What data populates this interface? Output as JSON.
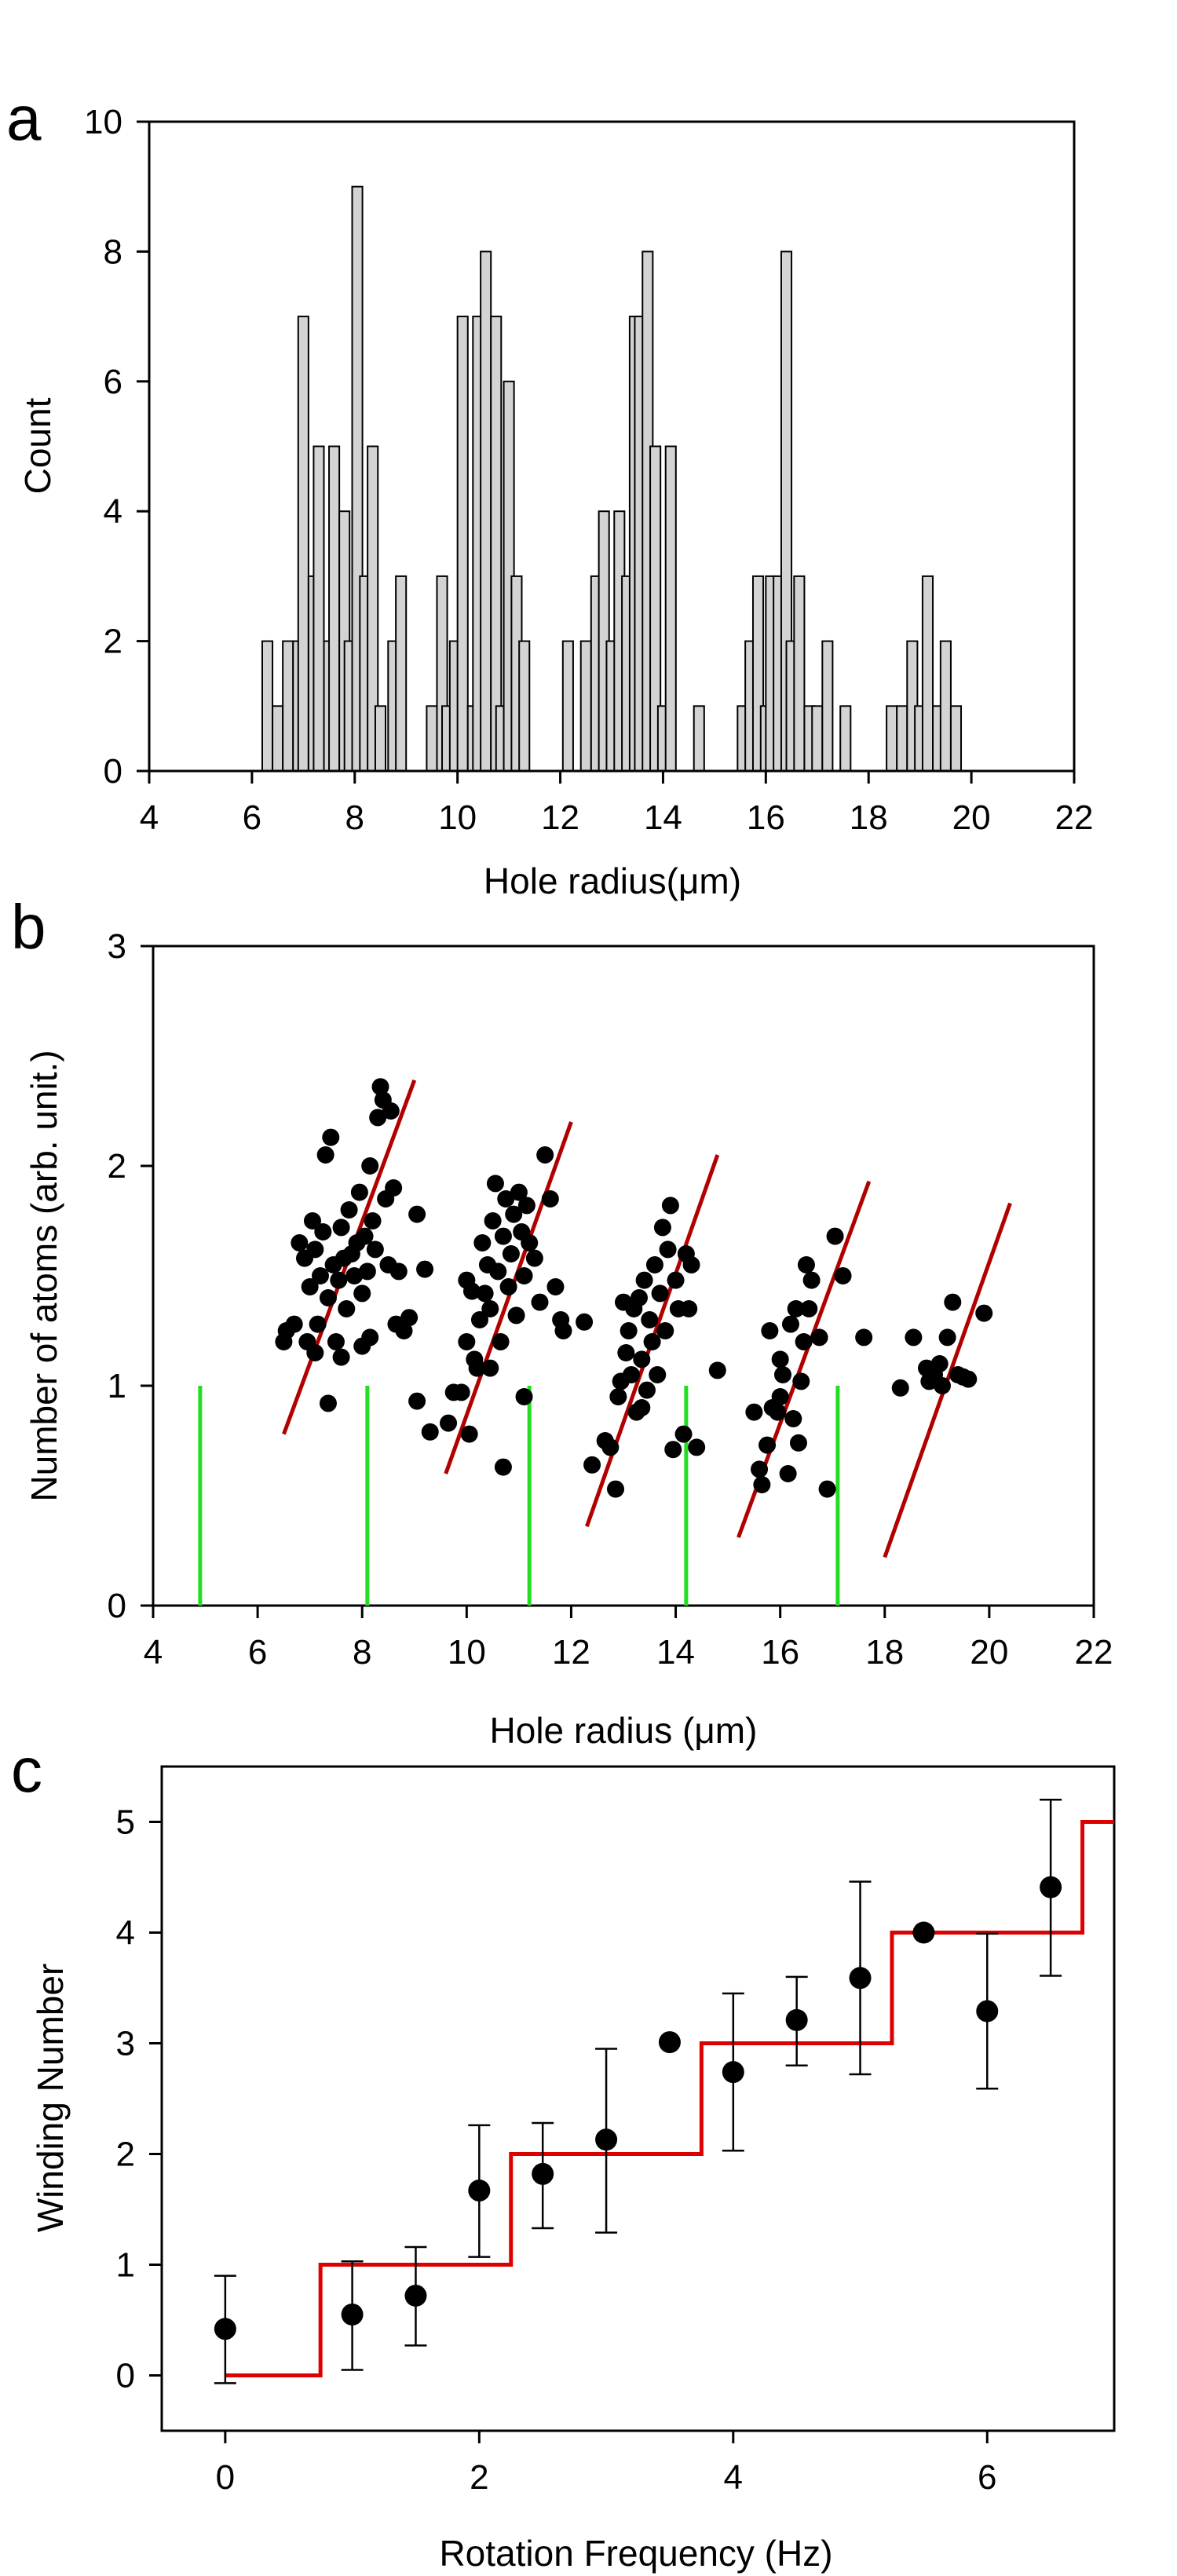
{
  "chart_data": [
    {
      "panel": "a",
      "type": "bar",
      "subtype": "histogram",
      "xlabel": "Hole radius(μm)",
      "ylabel": "Count",
      "xlim": [
        4,
        22
      ],
      "ylim": [
        0,
        10
      ],
      "xticks": [
        4,
        6,
        8,
        10,
        12,
        14,
        16,
        18,
        20,
        22
      ],
      "yticks": [
        0,
        2,
        4,
        6,
        8,
        10
      ],
      "bin_width": 0.2,
      "bar_color": "#d3d3d3",
      "bins": [
        {
          "x": 6.3,
          "count": 2
        },
        {
          "x": 6.5,
          "count": 1
        },
        {
          "x": 6.7,
          "count": 2
        },
        {
          "x": 6.9,
          "count": 2
        },
        {
          "x": 7.0,
          "count": 7
        },
        {
          "x": 7.2,
          "count": 3
        },
        {
          "x": 7.3,
          "count": 5
        },
        {
          "x": 7.5,
          "count": 2
        },
        {
          "x": 7.6,
          "count": 5
        },
        {
          "x": 7.8,
          "count": 4
        },
        {
          "x": 7.9,
          "count": 2
        },
        {
          "x": 8.05,
          "count": 9
        },
        {
          "x": 8.2,
          "count": 3
        },
        {
          "x": 8.35,
          "count": 5
        },
        {
          "x": 8.5,
          "count": 1
        },
        {
          "x": 8.75,
          "count": 2
        },
        {
          "x": 8.9,
          "count": 3
        },
        {
          "x": 9.5,
          "count": 1
        },
        {
          "x": 9.7,
          "count": 3
        },
        {
          "x": 9.8,
          "count": 1
        },
        {
          "x": 9.95,
          "count": 2
        },
        {
          "x": 10.1,
          "count": 7
        },
        {
          "x": 10.3,
          "count": 1
        },
        {
          "x": 10.4,
          "count": 7
        },
        {
          "x": 10.55,
          "count": 8
        },
        {
          "x": 10.75,
          "count": 7
        },
        {
          "x": 10.85,
          "count": 1
        },
        {
          "x": 11.0,
          "count": 6
        },
        {
          "x": 11.15,
          "count": 3
        },
        {
          "x": 11.3,
          "count": 2
        },
        {
          "x": 12.15,
          "count": 2
        },
        {
          "x": 12.5,
          "count": 2
        },
        {
          "x": 12.7,
          "count": 3
        },
        {
          "x": 12.85,
          "count": 4
        },
        {
          "x": 13.0,
          "count": 2
        },
        {
          "x": 13.15,
          "count": 4
        },
        {
          "x": 13.3,
          "count": 3
        },
        {
          "x": 13.45,
          "count": 7
        },
        {
          "x": 13.55,
          "count": 7
        },
        {
          "x": 13.7,
          "count": 8
        },
        {
          "x": 13.85,
          "count": 5
        },
        {
          "x": 14.0,
          "count": 1
        },
        {
          "x": 14.15,
          "count": 5
        },
        {
          "x": 14.7,
          "count": 1
        },
        {
          "x": 15.55,
          "count": 1
        },
        {
          "x": 15.7,
          "count": 2
        },
        {
          "x": 15.85,
          "count": 3
        },
        {
          "x": 16.0,
          "count": 1
        },
        {
          "x": 16.1,
          "count": 3
        },
        {
          "x": 16.25,
          "count": 3
        },
        {
          "x": 16.4,
          "count": 8
        },
        {
          "x": 16.5,
          "count": 2
        },
        {
          "x": 16.65,
          "count": 3
        },
        {
          "x": 16.85,
          "count": 1
        },
        {
          "x": 17.0,
          "count": 1
        },
        {
          "x": 17.2,
          "count": 2
        },
        {
          "x": 17.55,
          "count": 1
        },
        {
          "x": 18.45,
          "count": 1
        },
        {
          "x": 18.65,
          "count": 1
        },
        {
          "x": 18.85,
          "count": 2
        },
        {
          "x": 19.0,
          "count": 1
        },
        {
          "x": 19.15,
          "count": 3
        },
        {
          "x": 19.35,
          "count": 1
        },
        {
          "x": 19.5,
          "count": 2
        },
        {
          "x": 19.7,
          "count": 1
        }
      ]
    },
    {
      "panel": "b",
      "type": "scatter",
      "xlabel": "Hole radius (μm)",
      "ylabel": "Number of atoms (arb. unit.)",
      "xlim": [
        4,
        22
      ],
      "ylim": [
        0,
        3
      ],
      "xticks": [
        4,
        6,
        8,
        10,
        12,
        14,
        16,
        18,
        20,
        22
      ],
      "yticks": [
        0,
        1,
        2,
        3
      ],
      "point_color": "#000000",
      "fit_line_color": "#b00000",
      "marker_line_color": "#22dd22",
      "marker_lines": [
        {
          "x": 4.9,
          "y0": 0,
          "y1": 1.0
        },
        {
          "x": 8.1,
          "y0": 0,
          "y1": 1.0
        },
        {
          "x": 11.2,
          "y0": 0,
          "y1": 1.0
        },
        {
          "x": 14.2,
          "y0": 0,
          "y1": 1.0
        },
        {
          "x": 17.1,
          "y0": 0,
          "y1": 1.0
        }
      ],
      "fit_lines": [
        {
          "x0": 6.5,
          "y0": 0.78,
          "x1": 9.0,
          "y1": 2.39
        },
        {
          "x0": 9.6,
          "y0": 0.6,
          "x1": 12.0,
          "y1": 2.2
        },
        {
          "x0": 12.3,
          "y0": 0.36,
          "x1": 14.8,
          "y1": 2.05
        },
        {
          "x0": 15.2,
          "y0": 0.31,
          "x1": 17.7,
          "y1": 1.93
        },
        {
          "x0": 18.0,
          "y0": 0.22,
          "x1": 20.4,
          "y1": 1.83
        }
      ],
      "points": [
        [
          6.55,
          1.25
        ],
        [
          6.5,
          1.2
        ],
        [
          6.7,
          1.28
        ],
        [
          6.8,
          1.65
        ],
        [
          6.9,
          1.58
        ],
        [
          6.95,
          1.2
        ],
        [
          7.0,
          1.45
        ],
        [
          7.05,
          1.75
        ],
        [
          7.1,
          1.62
        ],
        [
          7.15,
          1.28
        ],
        [
          7.2,
          1.5
        ],
        [
          7.25,
          1.7
        ],
        [
          7.3,
          2.05
        ],
        [
          7.35,
          1.4
        ],
        [
          7.4,
          2.13
        ],
        [
          7.45,
          1.55
        ],
        [
          7.5,
          1.2
        ],
        [
          7.55,
          1.48
        ],
        [
          7.6,
          1.72
        ],
        [
          7.65,
          1.58
        ],
        [
          7.7,
          1.35
        ],
        [
          7.75,
          1.8
        ],
        [
          7.8,
          1.6
        ],
        [
          7.85,
          1.5
        ],
        [
          7.9,
          1.65
        ],
        [
          7.95,
          1.88
        ],
        [
          8.0,
          1.42
        ],
        [
          8.05,
          1.68
        ],
        [
          8.1,
          1.52
        ],
        [
          8.15,
          2.0
        ],
        [
          8.2,
          1.75
        ],
        [
          8.25,
          1.62
        ],
        [
          8.3,
          2.22
        ],
        [
          8.35,
          2.36
        ],
        [
          8.4,
          2.3
        ],
        [
          8.45,
          1.85
        ],
        [
          8.5,
          1.55
        ],
        [
          8.55,
          2.25
        ],
        [
          8.6,
          1.9
        ],
        [
          8.65,
          1.28
        ],
        [
          8.7,
          1.52
        ],
        [
          8.8,
          1.25
        ],
        [
          8.9,
          1.31
        ],
        [
          7.1,
          1.15
        ],
        [
          7.35,
          0.92
        ],
        [
          7.6,
          1.13
        ],
        [
          8.0,
          1.18
        ],
        [
          8.15,
          1.22
        ],
        [
          9.05,
          1.78
        ],
        [
          9.2,
          1.53
        ],
        [
          9.3,
          0.79
        ],
        [
          9.05,
          0.93
        ],
        [
          9.65,
          0.83
        ],
        [
          9.75,
          0.97
        ],
        [
          9.9,
          0.97
        ],
        [
          10.0,
          1.2
        ],
        [
          10.05,
          0.78
        ],
        [
          10.0,
          1.48
        ],
        [
          10.1,
          1.43
        ],
        [
          10.2,
          1.08
        ],
        [
          10.25,
          1.3
        ],
        [
          10.3,
          1.65
        ],
        [
          10.35,
          1.42
        ],
        [
          10.4,
          1.55
        ],
        [
          10.45,
          1.35
        ],
        [
          10.5,
          1.75
        ],
        [
          10.55,
          1.92
        ],
        [
          10.6,
          1.52
        ],
        [
          10.65,
          1.2
        ],
        [
          10.7,
          1.68
        ],
        [
          10.75,
          1.85
        ],
        [
          10.8,
          1.45
        ],
        [
          10.85,
          1.6
        ],
        [
          10.9,
          1.78
        ],
        [
          10.95,
          1.32
        ],
        [
          11.0,
          1.88
        ],
        [
          11.05,
          1.7
        ],
        [
          11.1,
          1.5
        ],
        [
          11.15,
          1.82
        ],
        [
          11.2,
          1.65
        ],
        [
          11.3,
          1.58
        ],
        [
          11.4,
          1.38
        ],
        [
          11.5,
          2.05
        ],
        [
          11.6,
          1.85
        ],
        [
          11.7,
          1.45
        ],
        [
          11.8,
          1.3
        ],
        [
          11.85,
          1.25
        ],
        [
          10.7,
          0.63
        ],
        [
          10.15,
          1.12
        ],
        [
          10.45,
          1.08
        ],
        [
          11.1,
          0.95
        ],
        [
          12.25,
          1.29
        ],
        [
          12.4,
          0.64
        ],
        [
          12.65,
          0.75
        ],
        [
          12.75,
          0.72
        ],
        [
          12.85,
          0.53
        ],
        [
          12.9,
          0.95
        ],
        [
          12.95,
          1.02
        ],
        [
          13.0,
          1.38
        ],
        [
          13.05,
          1.15
        ],
        [
          13.1,
          1.25
        ],
        [
          13.15,
          1.05
        ],
        [
          13.2,
          1.35
        ],
        [
          13.25,
          0.88
        ],
        [
          13.3,
          1.4
        ],
        [
          13.35,
          1.12
        ],
        [
          13.4,
          1.48
        ],
        [
          13.45,
          0.98
        ],
        [
          13.5,
          1.3
        ],
        [
          13.55,
          1.2
        ],
        [
          13.6,
          1.55
        ],
        [
          13.65,
          1.05
        ],
        [
          13.7,
          1.42
        ],
        [
          13.75,
          1.72
        ],
        [
          13.8,
          1.25
        ],
        [
          13.85,
          1.62
        ],
        [
          13.9,
          1.82
        ],
        [
          14.0,
          1.48
        ],
        [
          14.05,
          1.35
        ],
        [
          14.15,
          0.78
        ],
        [
          14.2,
          1.6
        ],
        [
          14.3,
          1.55
        ],
        [
          14.4,
          0.72
        ],
        [
          13.95,
          0.71
        ],
        [
          13.35,
          0.9
        ],
        [
          14.25,
          1.35
        ],
        [
          14.8,
          1.07
        ],
        [
          15.5,
          0.88
        ],
        [
          15.6,
          0.62
        ],
        [
          15.65,
          0.55
        ],
        [
          15.75,
          0.73
        ],
        [
          15.8,
          1.25
        ],
        [
          15.85,
          0.9
        ],
        [
          15.95,
          0.88
        ],
        [
          16.0,
          1.12
        ],
        [
          16.05,
          1.05
        ],
        [
          16.15,
          0.6
        ],
        [
          16.2,
          1.28
        ],
        [
          16.25,
          0.85
        ],
        [
          16.3,
          1.35
        ],
        [
          16.35,
          0.74
        ],
        [
          16.4,
          1.02
        ],
        [
          16.45,
          1.2
        ],
        [
          16.5,
          1.55
        ],
        [
          16.55,
          1.35
        ],
        [
          16.6,
          1.48
        ],
        [
          16.75,
          1.22
        ],
        [
          16.9,
          0.53
        ],
        [
          17.05,
          1.68
        ],
        [
          17.2,
          1.5
        ],
        [
          17.6,
          1.22
        ],
        [
          16.0,
          0.95
        ],
        [
          18.3,
          0.99
        ],
        [
          18.55,
          1.22
        ],
        [
          18.8,
          1.08
        ],
        [
          18.85,
          1.02
        ],
        [
          18.95,
          1.05
        ],
        [
          19.05,
          1.1
        ],
        [
          19.1,
          1.0
        ],
        [
          19.2,
          1.22
        ],
        [
          19.3,
          1.38
        ],
        [
          19.4,
          1.05
        ],
        [
          19.6,
          1.03
        ],
        [
          19.9,
          1.33
        ],
        [
          19.5,
          1.04
        ]
      ]
    },
    {
      "panel": "c",
      "type": "scatter",
      "subtype": "errorbar-with-step",
      "xlabel": "Rotation Frequency (Hz)",
      "ylabel": "Winding Number",
      "xlim": [
        -0.5,
        7.0
      ],
      "ylim": [
        -0.5,
        5.5
      ],
      "xticks": [
        0,
        2,
        4,
        6
      ],
      "yticks": [
        0,
        1,
        2,
        3,
        4,
        5
      ],
      "point_color": "#000000",
      "step_color": "#dd0000",
      "points": [
        {
          "x": 0.0,
          "y": 0.42,
          "lo": -0.07,
          "hi": 0.9
        },
        {
          "x": 1.0,
          "y": 0.55,
          "lo": 0.05,
          "hi": 1.03
        },
        {
          "x": 1.5,
          "y": 0.72,
          "lo": 0.27,
          "hi": 1.16
        },
        {
          "x": 2.0,
          "y": 1.67,
          "lo": 1.07,
          "hi": 2.26
        },
        {
          "x": 2.5,
          "y": 1.82,
          "lo": 1.33,
          "hi": 2.28
        },
        {
          "x": 3.0,
          "y": 2.13,
          "lo": 1.29,
          "hi": 2.95
        },
        {
          "x": 3.5,
          "y": 3.01,
          "lo": 3.01,
          "hi": 3.01
        },
        {
          "x": 4.0,
          "y": 2.74,
          "lo": 2.03,
          "hi": 3.45
        },
        {
          "x": 4.5,
          "y": 3.21,
          "lo": 2.8,
          "hi": 3.6
        },
        {
          "x": 5.0,
          "y": 3.59,
          "lo": 2.72,
          "hi": 4.46
        },
        {
          "x": 5.5,
          "y": 4.0,
          "lo": 4.0,
          "hi": 4.0
        },
        {
          "x": 6.0,
          "y": 3.29,
          "lo": 2.59,
          "hi": 3.99
        },
        {
          "x": 6.5,
          "y": 4.41,
          "lo": 3.61,
          "hi": 5.2
        }
      ],
      "step": [
        [
          0.0,
          0
        ],
        [
          0.75,
          0
        ],
        [
          0.75,
          1
        ],
        [
          2.25,
          1
        ],
        [
          2.25,
          2
        ],
        [
          3.75,
          2
        ],
        [
          3.75,
          3
        ],
        [
          5.25,
          3
        ],
        [
          5.25,
          4
        ],
        [
          6.75,
          4
        ],
        [
          6.75,
          5
        ],
        [
          7.0,
          5
        ]
      ]
    }
  ]
}
